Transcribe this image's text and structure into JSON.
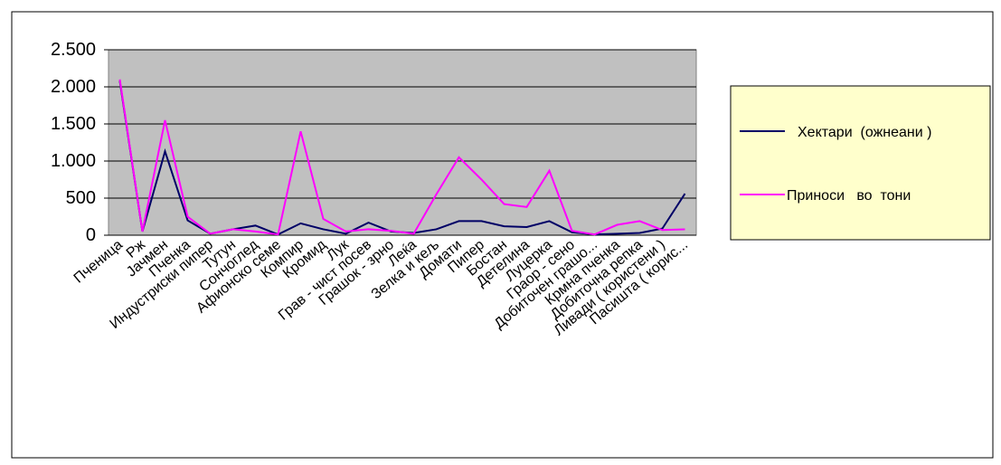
{
  "chart_data": {
    "type": "line",
    "categories": [
      "Пченица",
      "Рж",
      "Јачмен",
      "Пченка",
      "Индустриски пипер",
      "Тутун",
      "Сончоглед",
      "Афионско семе",
      "Компир",
      "Кромид",
      "Лук",
      "Грав - чист посев",
      "Грашок - зрно",
      "Леќа",
      "Зелка и кељ",
      "Домати",
      "Пипер",
      "Бостан",
      "Детелина",
      "Луцерка",
      "Граор - сено",
      "Добиточен грашо...",
      "Крмна пченка",
      "Добиточна репка",
      "Ливади ( користени )",
      "Пасишта ( корис..."
    ],
    "series": [
      {
        "name": "Хектари  (ожнеани )",
        "color": "#000066",
        "values": [
          2080,
          50,
          1130,
          200,
          20,
          80,
          130,
          10,
          160,
          80,
          20,
          170,
          50,
          30,
          80,
          190,
          190,
          120,
          110,
          190,
          40,
          10,
          20,
          30,
          90,
          560
        ]
      },
      {
        "name": "Приноси   во  тони",
        "color": "#ff00ff",
        "values": [
          2100,
          50,
          1550,
          250,
          20,
          80,
          50,
          10,
          1400,
          220,
          50,
          80,
          60,
          20,
          550,
          1050,
          750,
          420,
          380,
          870,
          60,
          10,
          140,
          190,
          70,
          80
        ]
      }
    ],
    "ylim": [
      0,
      2500
    ],
    "yticks": [
      0,
      500,
      {
        "value": 1000,
        "label": "1.000"
      },
      {
        "value": 1500,
        "label": "1.500"
      },
      {
        "value": 2000,
        "label": "2.000"
      },
      {
        "value": 2500,
        "label": "2.500"
      }
    ],
    "grid": true,
    "legend": "right"
  }
}
